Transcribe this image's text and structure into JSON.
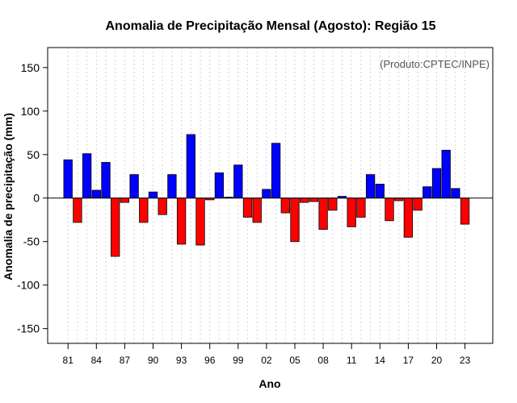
{
  "chart_data": {
    "type": "bar",
    "title": "Anomalia de Precipitação Mensal (Agosto): Região 15",
    "xlabel": "Ano",
    "ylabel": "Anomalia de precipitação (mm)",
    "credit": "(Produto:CPTEC/INPE)",
    "ylim": [
      -167,
      173
    ],
    "yticks": [
      -150,
      -100,
      -50,
      0,
      50,
      100,
      150
    ],
    "xtick_labels": [
      "81",
      "84",
      "87",
      "90",
      "93",
      "96",
      "99",
      "02",
      "05",
      "08",
      "11",
      "14",
      "17",
      "20",
      "23"
    ],
    "years": [
      "1981",
      "1982",
      "1983",
      "1984",
      "1985",
      "1986",
      "1987",
      "1988",
      "1989",
      "1990",
      "1991",
      "1992",
      "1993",
      "1994",
      "1995",
      "1996",
      "1997",
      "1998",
      "1999",
      "2000",
      "2001",
      "2002",
      "2003",
      "2004",
      "2005",
      "2006",
      "2007",
      "2008",
      "2009",
      "2010",
      "2011",
      "2012",
      "2013",
      "2014",
      "2015",
      "2016",
      "2017",
      "2018",
      "2019",
      "2020",
      "2021",
      "2022",
      "2023"
    ],
    "values": [
      44,
      -28,
      51,
      9,
      41,
      -67,
      -5,
      27,
      -28,
      7,
      -19,
      27,
      -53,
      73,
      -54,
      -2,
      29,
      1,
      38,
      -22,
      -28,
      10,
      63,
      -17,
      -50,
      -5,
      -4,
      -36,
      -14,
      2,
      -33,
      -22,
      27,
      16,
      -26,
      -3,
      -45,
      -14,
      13,
      34,
      55,
      11,
      -30
    ],
    "positive_color": "#0000ff",
    "negative_color": "#ff0000",
    "grid": true,
    "zero_line": true
  }
}
